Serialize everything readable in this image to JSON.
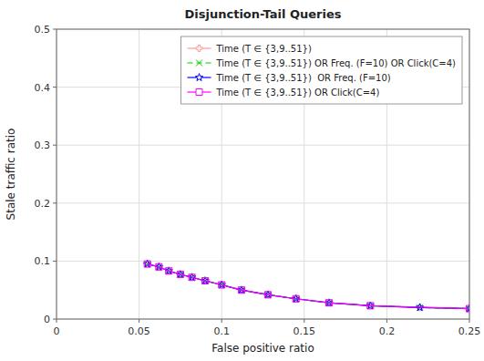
{
  "chart_data": {
    "type": "line",
    "title": "Disjunction-Tail Queries",
    "xlabel": "False positive ratio",
    "ylabel": "Stale traffic ratio",
    "xlim": [
      0,
      0.25
    ],
    "ylim": [
      0,
      0.5
    ],
    "xticks": [
      0,
      0.05,
      0.1,
      0.15,
      0.2,
      0.25
    ],
    "yticks": [
      0,
      0.1,
      0.2,
      0.3,
      0.4,
      0.5
    ],
    "grid": true,
    "legend": "upper right",
    "series": [
      {
        "name": "Time (T ∈ {3,9..51})",
        "color": "#ff9999",
        "marker": "plus",
        "line_style": "solid",
        "x": [
          0.055,
          0.062,
          0.068,
          0.075,
          0.082,
          0.09,
          0.1,
          0.112,
          0.128,
          0.145,
          0.165,
          0.19,
          0.22,
          0.25
        ],
        "values": [
          0.095,
          0.09,
          0.083,
          0.077,
          0.072,
          0.066,
          0.059,
          0.05,
          0.042,
          0.035,
          0.028,
          0.023,
          0.02,
          0.018
        ]
      },
      {
        "name": "Time (T ∈ {3,9..51}) OR Freq. (F=10) OR Click(C=4)",
        "color": "#00cc00",
        "marker": "x",
        "line_style": "dashed",
        "x": [
          0.055,
          0.062,
          0.068,
          0.075,
          0.082,
          0.09,
          0.1,
          0.112,
          0.128,
          0.145,
          0.165,
          0.19,
          0.22,
          0.25
        ],
        "values": [
          0.095,
          0.09,
          0.083,
          0.077,
          0.072,
          0.066,
          0.059,
          0.05,
          0.042,
          0.035,
          0.028,
          0.023,
          0.02,
          0.018
        ]
      },
      {
        "name": "Time (T ∈ {3,9..51})  OR Freq. (F=10)",
        "color": "#0000ff",
        "marker": "star",
        "line_style": "solid",
        "x": [
          0.055,
          0.062,
          0.068,
          0.075,
          0.082,
          0.09,
          0.1,
          0.112,
          0.128,
          0.145,
          0.165,
          0.19,
          0.22,
          0.25
        ],
        "values": [
          0.095,
          0.09,
          0.083,
          0.077,
          0.072,
          0.066,
          0.059,
          0.05,
          0.042,
          0.035,
          0.028,
          0.023,
          0.02,
          0.018
        ]
      },
      {
        "name": "Time (T ∈ {3,9..51}) OR Click(C=4)",
        "color": "#ff00ff",
        "marker": "square",
        "line_style": "solid",
        "x": [
          0.055,
          0.062,
          0.068,
          0.075,
          0.082,
          0.09,
          0.1,
          0.112,
          0.128,
          0.145,
          0.165,
          0.19,
          0.25
        ],
        "values": [
          0.095,
          0.09,
          0.083,
          0.077,
          0.072,
          0.066,
          0.059,
          0.05,
          0.042,
          0.035,
          0.028,
          0.023,
          0.018
        ]
      }
    ]
  }
}
